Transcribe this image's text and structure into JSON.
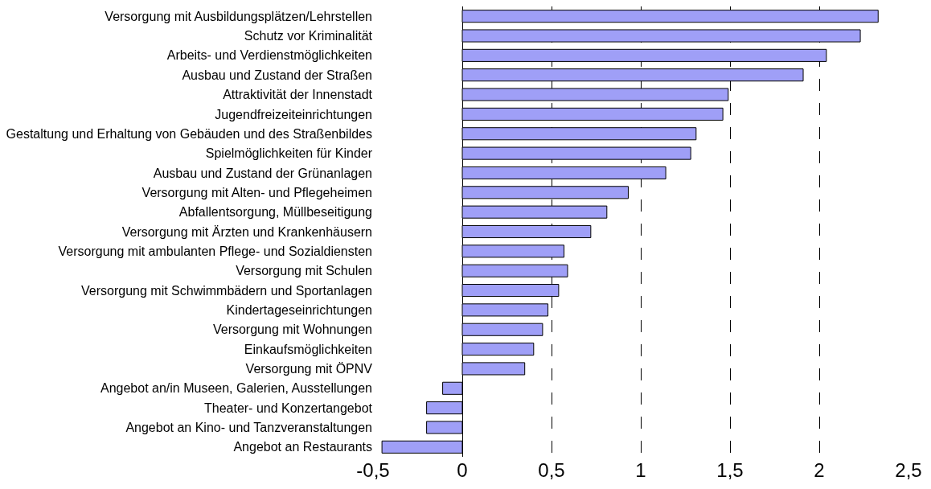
{
  "chart_data": {
    "type": "bar",
    "orientation": "horizontal",
    "categories": [
      "Versorgung mit Ausbildungsplätzen/Lehrstellen",
      "Schutz vor Kriminalität",
      "Arbeits- und Verdienstmöglichkeiten",
      "Ausbau und Zustand der Straßen",
      "Attraktivität der Innenstadt",
      "Jugendfreizeiteinrichtungen",
      "Gestaltung und Erhaltung von Gebäuden und des Straßenbildes",
      "Spielmöglichkeiten für Kinder",
      "Ausbau und Zustand der Grünanlagen",
      "Versorgung mit Alten- und Pflegeheimen",
      "Abfallentsorgung, Müllbeseitigung",
      "Versorgung mit Ärzten und Krankenhäusern",
      "Versorgung mit ambulanten Pflege- und Sozialdiensten",
      "Versorgung mit Schulen",
      "Versorgung mit Schwimmbädern und Sportanlagen",
      "Kindertageseinrichtungen",
      "Versorgung mit Wohnungen",
      "Einkaufsmöglichkeiten",
      "Versorgung mit ÖPNV",
      "Angebot an/in Museen, Galerien, Ausstellungen",
      "Theater- und Konzertangebot",
      "Angebot an Kino- und Tanzveranstaltungen",
      "Angebot an Restaurants"
    ],
    "values": [
      2.33,
      2.23,
      2.04,
      1.91,
      1.49,
      1.46,
      1.31,
      1.28,
      1.14,
      0.93,
      0.81,
      0.72,
      0.57,
      0.59,
      0.54,
      0.48,
      0.45,
      0.4,
      0.35,
      -0.11,
      -0.2,
      -0.2,
      -0.45
    ],
    "color": "#9f9ff7",
    "xlim": [
      -0.5,
      2.5
    ],
    "xticks": [
      {
        "value": -0.5,
        "label": "-0,5"
      },
      0,
      {
        "value": 0.5,
        "label": "0,5"
      },
      1,
      {
        "value": 1.5,
        "label": "1,5"
      },
      2,
      {
        "value": 2.5,
        "label": "2,5"
      }
    ],
    "grid": "x"
  }
}
